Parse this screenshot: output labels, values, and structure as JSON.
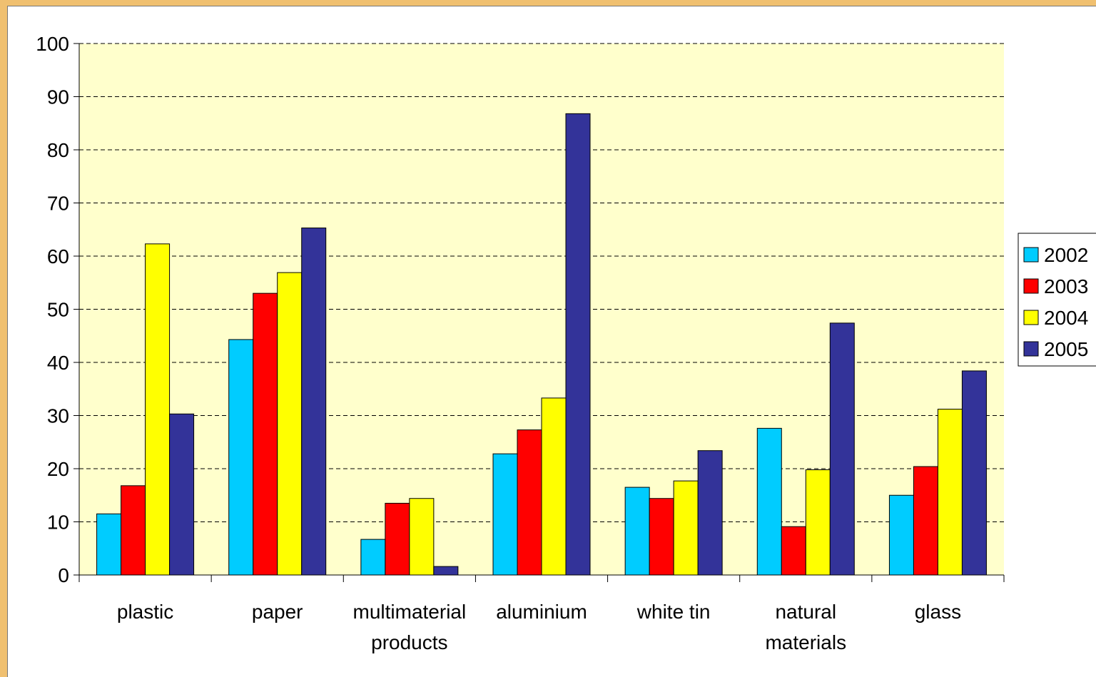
{
  "chart_data": {
    "type": "bar",
    "title": "",
    "xlabel": "",
    "ylabel": "",
    "ylim": [
      0,
      100
    ],
    "yticks": [
      0,
      10,
      20,
      30,
      40,
      50,
      60,
      70,
      80,
      90,
      100
    ],
    "grid": true,
    "legend_position": "right",
    "categories": [
      [
        "plastic"
      ],
      [
        "paper"
      ],
      [
        "multimaterial",
        "products"
      ],
      [
        "aluminium"
      ],
      [
        "white tin"
      ],
      [
        "natural",
        "materials"
      ],
      [
        "glass"
      ]
    ],
    "series": [
      {
        "name": "2002",
        "color": "#00ccff",
        "values": [
          11.5,
          44.3,
          6.7,
          22.8,
          16.5,
          27.6,
          15.0
        ]
      },
      {
        "name": "2003",
        "color": "#ff0000",
        "values": [
          16.8,
          53.0,
          13.5,
          27.3,
          14.4,
          9.1,
          20.4
        ]
      },
      {
        "name": "2004",
        "color": "#ffff00",
        "values": [
          62.3,
          56.9,
          14.4,
          33.3,
          17.7,
          19.8,
          31.2
        ]
      },
      {
        "name": "2005",
        "color": "#333399",
        "values": [
          30.3,
          65.3,
          1.6,
          86.8,
          23.4,
          47.4,
          38.4
        ]
      }
    ],
    "plot_background": "#ffffcc",
    "page_background": "#f0c070"
  }
}
